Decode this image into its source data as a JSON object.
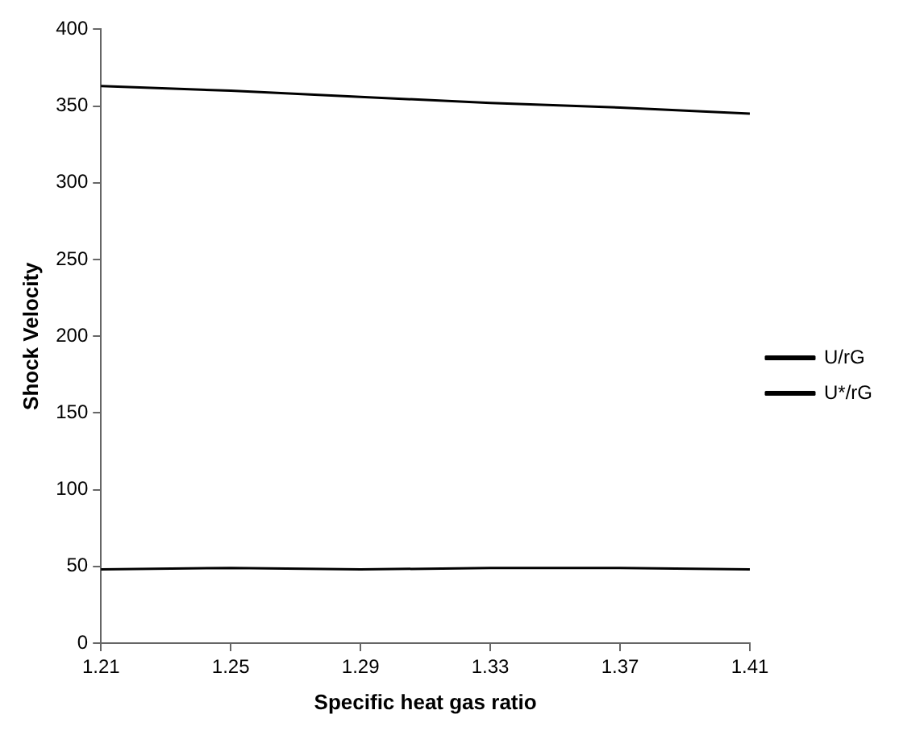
{
  "chart_data": {
    "type": "line",
    "xlabel": "Specific heat gas ratio",
    "ylabel": "Shock Velocity",
    "categories": [
      "1.21",
      "1.25",
      "1.29",
      "1.33",
      "1.37",
      "1.41"
    ],
    "series": [
      {
        "name": "U/rG",
        "color": "#000000",
        "values": [
          363,
          360,
          356,
          352,
          349,
          345
        ]
      },
      {
        "name": "U*/rG",
        "color": "#000000",
        "values": [
          48,
          49,
          48,
          49,
          49,
          48
        ]
      }
    ],
    "ylim": [
      0,
      400
    ],
    "yticks": [
      0,
      50,
      100,
      150,
      200,
      250,
      300,
      350,
      400
    ],
    "grid": false,
    "legend": "right",
    "marker": "none",
    "line_style": "solid"
  }
}
